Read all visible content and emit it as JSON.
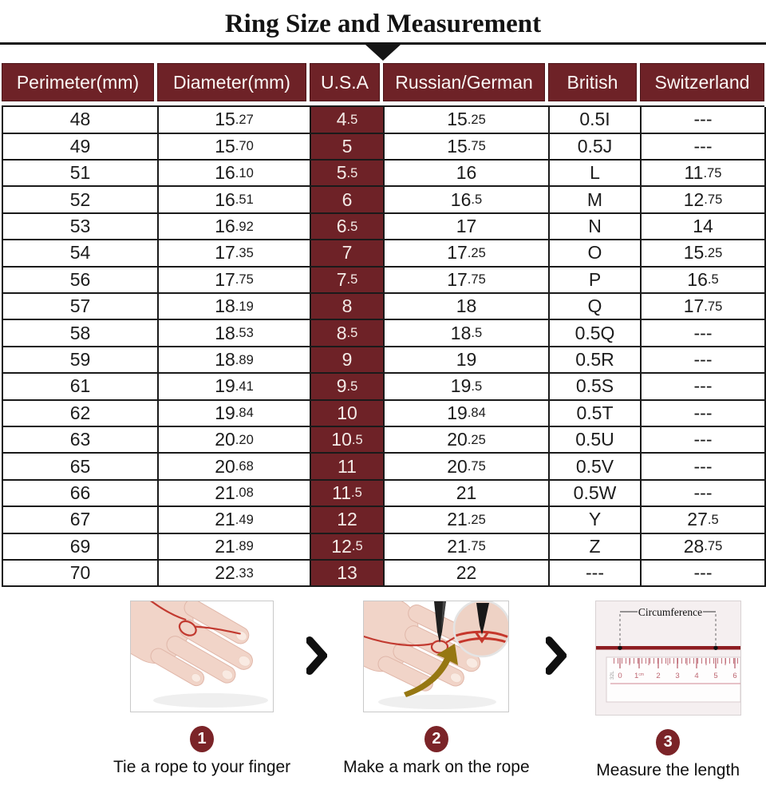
{
  "title": "Ring Size and Measurement",
  "table": {
    "headers": [
      "Perimeter(mm)",
      "Diameter(mm)",
      "U.S.A",
      "Russian/German",
      "British",
      "Switzerland"
    ],
    "highlight_column": "U.S.A",
    "rows": [
      [
        "48",
        "15.27",
        "4.5",
        "15.25",
        "0.5I",
        "---"
      ],
      [
        "49",
        "15.70",
        "5",
        "15.75",
        "0.5J",
        "---"
      ],
      [
        "51",
        "16.10",
        "5.5",
        "16",
        "L",
        "11.75"
      ],
      [
        "52",
        "16.51",
        "6",
        "16.5",
        "M",
        "12.75"
      ],
      [
        "53",
        "16.92",
        "6.5",
        "17",
        "N",
        "14"
      ],
      [
        "54",
        "17.35",
        "7",
        "17.25",
        "O",
        "15.25"
      ],
      [
        "56",
        "17.75",
        "7.5",
        "17.75",
        "P",
        "16.5"
      ],
      [
        "57",
        "18.19",
        "8",
        "18",
        "Q",
        "17.75"
      ],
      [
        "58",
        "18.53",
        "8.5",
        "18.5",
        "0.5Q",
        "---"
      ],
      [
        "59",
        "18.89",
        "9",
        "19",
        "0.5R",
        "---"
      ],
      [
        "61",
        "19.41",
        "9.5",
        "19.5",
        "0.5S",
        "---"
      ],
      [
        "62",
        "19.84",
        "10",
        "19.84",
        "0.5T",
        "---"
      ],
      [
        "63",
        "20.20",
        "10.5",
        "20.25",
        "0.5U",
        "---"
      ],
      [
        "65",
        "20.68",
        "11",
        "20.75",
        "0.5V",
        "---"
      ],
      [
        "66",
        "21.08",
        "11.5",
        "21",
        "0.5W",
        "---"
      ],
      [
        "67",
        "21.49",
        "12",
        "21.25",
        "Y",
        "27.5"
      ],
      [
        "69",
        "21.89",
        "12.5",
        "21.75",
        "Z",
        "28.75"
      ],
      [
        "70",
        "22.33",
        "13",
        "22",
        "---",
        "---"
      ]
    ]
  },
  "steps": [
    {
      "number": "1",
      "caption": "Tie a rope to your finger"
    },
    {
      "number": "2",
      "caption": "Make a mark on the rope"
    },
    {
      "number": "3",
      "caption": "Measure the length"
    }
  ],
  "ruler": {
    "label": "Circumference",
    "tick_labels": [
      "0",
      "1",
      "2",
      "3",
      "4",
      "5",
      "6"
    ],
    "unit": "cm",
    "side_label": "32L"
  },
  "icons": {
    "divider_arrow": "triangle-down",
    "step_separator": "chevron-right"
  },
  "colors": {
    "maroon": "#6e2227",
    "badge": "#7b2428",
    "grid_line": "#1a1a1a",
    "rope_red": "#c23a30"
  }
}
